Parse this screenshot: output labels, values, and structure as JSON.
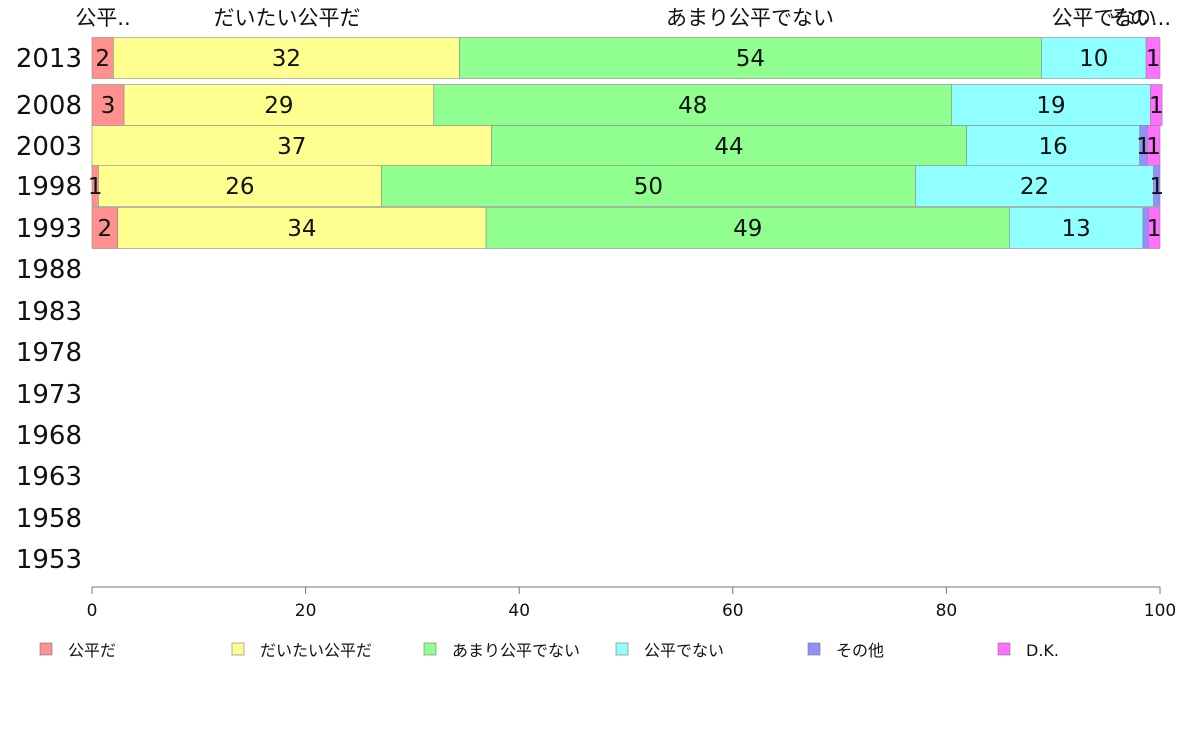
{
  "chart_data": {
    "type": "bar",
    "orientation": "horizontal",
    "stacked": true,
    "categories": [
      "2013",
      "2008",
      "2003",
      "1998",
      "1993",
      "1988",
      "1983",
      "1978",
      "1973",
      "1968",
      "1963",
      "1958",
      "1953"
    ],
    "series": [
      {
        "name": "公平だ",
        "color": "#ff9090",
        "values": [
          2,
          3,
          0,
          0.6,
          2.4,
          null,
          null,
          null,
          null,
          null,
          null,
          null,
          null
        ],
        "labels": [
          "2",
          "3",
          "",
          "1",
          "2",
          "",
          "",
          "",
          "",
          "",
          "",
          "",
          ""
        ]
      },
      {
        "name": "だいたい公平だ",
        "color": "#ffff90",
        "values": [
          32.4,
          29,
          37.4,
          26.5,
          34.5,
          null,
          null,
          null,
          null,
          null,
          null,
          null,
          null
        ],
        "labels": [
          "32",
          "29",
          "37",
          "26",
          "34",
          "",
          "",
          "",
          "",
          "",
          "",
          "",
          ""
        ]
      },
      {
        "name": "あまり公平でない",
        "color": "#90ff90",
        "values": [
          54.5,
          48.5,
          44.5,
          50,
          49,
          null,
          null,
          null,
          null,
          null,
          null,
          null,
          null
        ],
        "labels": [
          "54",
          "48",
          "44",
          "50",
          "49",
          "",
          "",
          "",
          "",
          "",
          "",
          "",
          ""
        ]
      },
      {
        "name": "公平でない",
        "color": "#90ffff",
        "values": [
          9.8,
          18.6,
          16.2,
          22.3,
          12.5,
          null,
          null,
          null,
          null,
          null,
          null,
          null,
          null
        ],
        "labels": [
          "10",
          "19",
          "16",
          "22",
          "13",
          "",
          "",
          "",
          "",
          "",
          "",
          "",
          ""
        ]
      },
      {
        "name": "その他",
        "color": "#9090ff",
        "values": [
          0,
          0,
          0.7,
          0.6,
          0.5,
          null,
          null,
          null,
          null,
          null,
          null,
          null,
          null
        ],
        "labels": [
          "",
          "",
          "1",
          "1",
          "",
          "",
          "",
          "",
          "",
          "",
          "",
          "",
          ""
        ]
      },
      {
        "name": "D.K.",
        "color": "#ff70ff",
        "values": [
          1.3,
          1.1,
          1.2,
          0,
          1.1,
          null,
          null,
          null,
          null,
          null,
          null,
          null,
          null
        ],
        "labels": [
          "1",
          "1",
          "1",
          "",
          "1",
          "",
          "",
          "",
          "",
          "",
          "",
          "",
          ""
        ]
      }
    ],
    "top_labels": [
      "公平..",
      "だいたい公平だ",
      "あまり公平でない",
      "公平でない",
      "その..."
    ],
    "xlim": [
      0,
      100
    ],
    "xticks": [
      "0",
      "20",
      "40",
      "60",
      "80",
      "100"
    ],
    "xlabel": "",
    "ylabel": "",
    "title": "",
    "grid": false,
    "legend_position": "bottom"
  }
}
